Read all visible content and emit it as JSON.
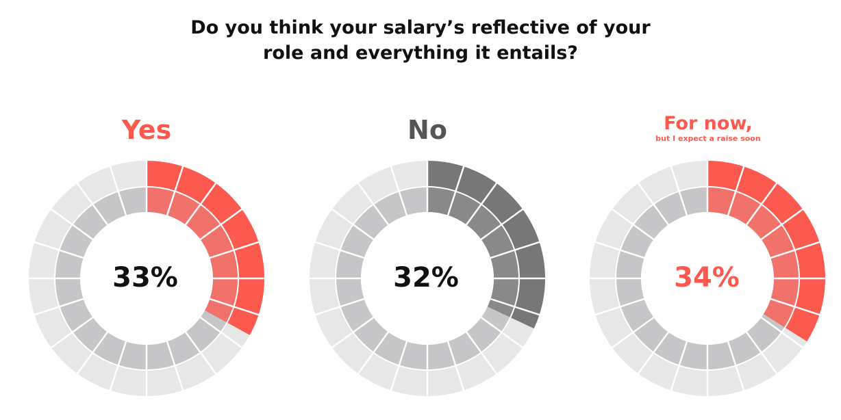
{
  "chart_data": {
    "type": "pie",
    "title": [
      "Do you think your salary’s reflective of your",
      "role and everything it entails?"
    ],
    "segments_per_ring": 20,
    "series": [
      {
        "name": "Yes",
        "subtitle": "",
        "value": 33,
        "value_label": "33%",
        "color": "#fc5a4f",
        "label_color": "#fc5a4f",
        "pct_color": "#111111"
      },
      {
        "name": "No",
        "subtitle": "",
        "value": 32,
        "value_label": "32%",
        "color": "#777777",
        "label_color": "#555555",
        "pct_color": "#111111"
      },
      {
        "name": "For now,",
        "subtitle": "but I expect a raise soon",
        "value": 34,
        "value_label": "34%",
        "color": "#fc5a4f",
        "label_color": "#fc5a4f",
        "pct_color": "#fc5a4f"
      }
    ],
    "colors": {
      "outer_empty": "#e7e7e8",
      "inner_empty": "#c6c6c8",
      "separator": "#ffffff"
    }
  }
}
